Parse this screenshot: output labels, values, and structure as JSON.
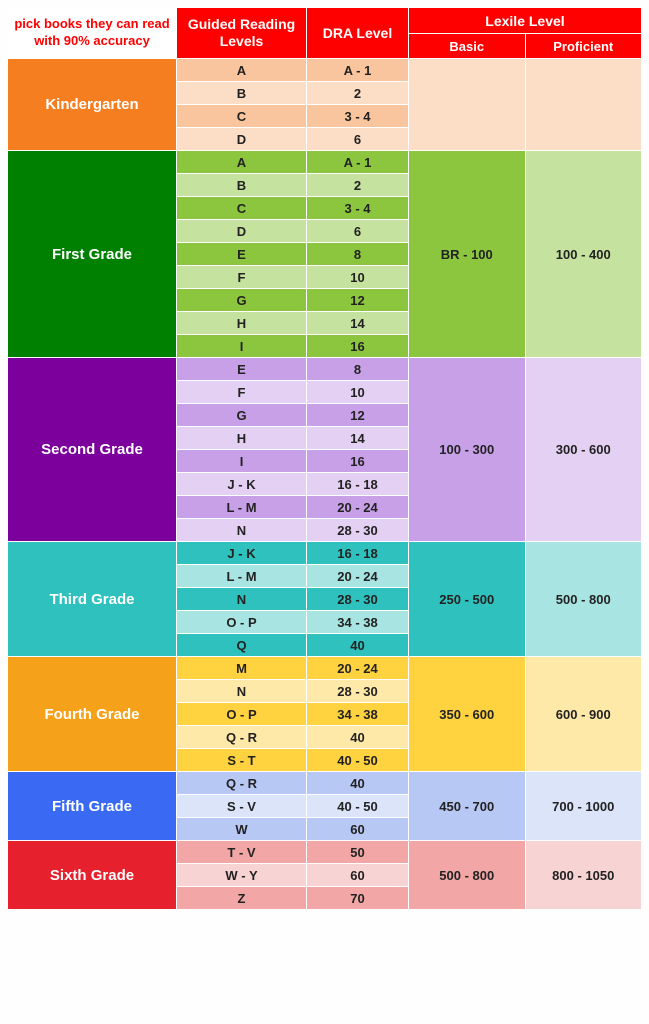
{
  "header": {
    "note": "pick books they can read with 90% accuracy",
    "note_color": "#ff0000",
    "gr": "Guided Reading Levels",
    "dra": "DRA Level",
    "lexile": "Lexile Level",
    "basic": "Basic",
    "proficient": "Proficient",
    "bg": "#ff0000"
  },
  "grades": [
    {
      "name": "Kindergarten",
      "label_bg": "#f57e20",
      "row_bg_a": "#f9c59e",
      "row_bg_b": "#fcddc5",
      "text_color": "#222222",
      "lexile_basic": "",
      "lexile_prof": "",
      "lexile_basic_bg": "#fcddc5",
      "lexile_prof_bg": "#fcddc5",
      "levels": [
        {
          "gr": "A",
          "dra": "A - 1"
        },
        {
          "gr": "B",
          "dra": "2"
        },
        {
          "gr": "C",
          "dra": "3 - 4"
        },
        {
          "gr": "D",
          "dra": "6"
        }
      ]
    },
    {
      "name": "First Grade",
      "label_bg": "#008000",
      "row_bg_a": "#8cc63e",
      "row_bg_b": "#c5e29e",
      "text_color": "#222222",
      "lexile_basic": "BR - 100",
      "lexile_prof": "100 - 400",
      "lexile_basic_bg": "#8cc63e",
      "lexile_prof_bg": "#c5e29e",
      "levels": [
        {
          "gr": "A",
          "dra": "A - 1"
        },
        {
          "gr": "B",
          "dra": "2"
        },
        {
          "gr": "C",
          "dra": "3 - 4"
        },
        {
          "gr": "D",
          "dra": "6"
        },
        {
          "gr": "E",
          "dra": "8"
        },
        {
          "gr": "F",
          "dra": "10"
        },
        {
          "gr": "G",
          "dra": "12"
        },
        {
          "gr": "H",
          "dra": "14"
        },
        {
          "gr": "I",
          "dra": "16"
        }
      ]
    },
    {
      "name": "Second Grade",
      "label_bg": "#7b009c",
      "row_bg_a": "#c8a0e8",
      "row_bg_b": "#e3d0f2",
      "text_color": "#222222",
      "lexile_basic": "100 - 300",
      "lexile_prof": "300 - 600",
      "lexile_basic_bg": "#c8a0e8",
      "lexile_prof_bg": "#e3d0f2",
      "levels": [
        {
          "gr": "E",
          "dra": "8"
        },
        {
          "gr": "F",
          "dra": "10"
        },
        {
          "gr": "G",
          "dra": "12"
        },
        {
          "gr": "H",
          "dra": "14"
        },
        {
          "gr": "I",
          "dra": "16"
        },
        {
          "gr": "J - K",
          "dra": "16 - 18"
        },
        {
          "gr": "L - M",
          "dra": "20 - 24"
        },
        {
          "gr": "N",
          "dra": "28 - 30"
        }
      ]
    },
    {
      "name": "Third Grade",
      "label_bg": "#2fc1bd",
      "row_bg_a": "#2fc1bd",
      "row_bg_b": "#a8e4e2",
      "text_color": "#222222",
      "lexile_basic": "250 - 500",
      "lexile_prof": "500 - 800",
      "lexile_basic_bg": "#2fc1bd",
      "lexile_prof_bg": "#a8e4e2",
      "levels": [
        {
          "gr": "J - K",
          "dra": "16 - 18"
        },
        {
          "gr": "L - M",
          "dra": "20 - 24"
        },
        {
          "gr": "N",
          "dra": "28 - 30"
        },
        {
          "gr": "O - P",
          "dra": "34 - 38"
        },
        {
          "gr": "Q",
          "dra": "40"
        }
      ]
    },
    {
      "name": "Fourth Grade",
      "label_bg": "#f5a11a",
      "row_bg_a": "#ffd23f",
      "row_bg_b": "#ffe9a8",
      "text_color": "#222222",
      "lexile_basic": "350 - 600",
      "lexile_prof": "600 - 900",
      "lexile_basic_bg": "#ffd23f",
      "lexile_prof_bg": "#ffe9a8",
      "levels": [
        {
          "gr": "M",
          "dra": "20 - 24"
        },
        {
          "gr": "N",
          "dra": "28 - 30"
        },
        {
          "gr": "O - P",
          "dra": "34 - 38"
        },
        {
          "gr": "Q - R",
          "dra": "40"
        },
        {
          "gr": "S - T",
          "dra": "40 - 50"
        }
      ]
    },
    {
      "name": "Fifth Grade",
      "label_bg": "#3a6af4",
      "row_bg_a": "#b8c8f5",
      "row_bg_b": "#dce4fa",
      "text_color": "#222222",
      "lexile_basic": "450 - 700",
      "lexile_prof": "700 - 1000",
      "lexile_basic_bg": "#b8c8f5",
      "lexile_prof_bg": "#dce4fa",
      "levels": [
        {
          "gr": "Q - R",
          "dra": "40"
        },
        {
          "gr": "S - V",
          "dra": "40 - 50"
        },
        {
          "gr": "W",
          "dra": "60"
        }
      ]
    },
    {
      "name": "Sixth Grade",
      "label_bg": "#e6202c",
      "row_bg_a": "#f2a6a6",
      "row_bg_b": "#f8d3d3",
      "text_color": "#222222",
      "lexile_basic": "500 - 800",
      "lexile_prof": "800 - 1050",
      "lexile_basic_bg": "#f2a6a6",
      "lexile_prof_bg": "#f8d3d3",
      "levels": [
        {
          "gr": "T - V",
          "dra": "50"
        },
        {
          "gr": "W - Y",
          "dra": "60"
        },
        {
          "gr": "Z",
          "dra": "70"
        }
      ]
    }
  ]
}
